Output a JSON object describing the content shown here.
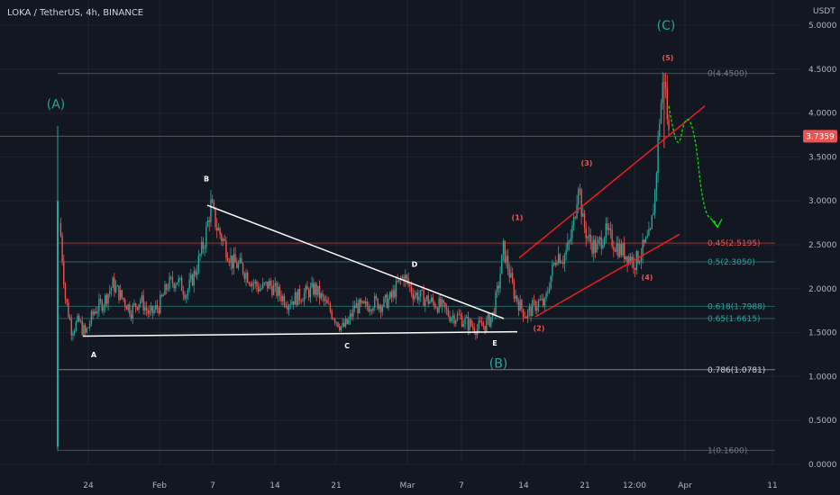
{
  "header": {
    "title": "LOKA / TetherUS, 4h, BINANCE",
    "currency": "USDT"
  },
  "colors": {
    "background": "#131722",
    "grid": "#1f2330",
    "up": "#26a69a",
    "down": "#ef5350",
    "wave_green": "#26a69a",
    "wave_red": "#ef5350",
    "triangle_line": "#ffffff",
    "channel_line": "#e91e1e",
    "projection": "#00e600"
  },
  "chart_data": {
    "type": "candlestick",
    "x_ticks": [
      "24",
      "Feb",
      "7",
      "14",
      "21",
      "Mar",
      "7",
      "14",
      "21",
      "12:00",
      "Apr",
      "11"
    ],
    "y_ticks": [
      "5.0000",
      "4.5000",
      "4.0000",
      "3.5000",
      "3.0000",
      "2.5000",
      "2.0000",
      "1.5000",
      "1.0000",
      "0.5000",
      "0.0000"
    ],
    "ylim": [
      0,
      5.2
    ],
    "current_price": "3.7359",
    "fib_levels": [
      {
        "label": "0(4.4500)",
        "value": 4.45,
        "color": "#787b86"
      },
      {
        "label": "0.45(2.5195)",
        "value": 2.5195,
        "color": "#ef5350"
      },
      {
        "label": "0.5(2.3050)",
        "value": 2.305,
        "color": "#26a69a"
      },
      {
        "label": "0.618(1.7988)",
        "value": 1.7988,
        "color": "#26a69a"
      },
      {
        "label": "0.65(1.6615)",
        "value": 1.6615,
        "color": "#26a69a"
      },
      {
        "label": "0.786(1.0781)",
        "value": 1.0781,
        "color": "#d1d4dc"
      },
      {
        "label": "1(0.1600)",
        "value": 0.16,
        "color": "#787b86"
      }
    ],
    "wave_labels": [
      {
        "text": "(A)",
        "kind": "big-green"
      },
      {
        "text": "A",
        "kind": "white"
      },
      {
        "text": "B",
        "kind": "white"
      },
      {
        "text": "C",
        "kind": "white"
      },
      {
        "text": "D",
        "kind": "white"
      },
      {
        "text": "E",
        "kind": "white"
      },
      {
        "text": "(B)",
        "kind": "big-green"
      },
      {
        "text": "(1)",
        "kind": "red"
      },
      {
        "text": "(2)",
        "kind": "red"
      },
      {
        "text": "(3)",
        "kind": "red"
      },
      {
        "text": "(4)",
        "kind": "red"
      },
      {
        "text": "(5)",
        "kind": "red"
      },
      {
        "text": "(C)",
        "kind": "big-green"
      }
    ],
    "price_path": [
      [
        0,
        2.9
      ],
      [
        2,
        2.6
      ],
      [
        5,
        1.9
      ],
      [
        9,
        1.55
      ],
      [
        14,
        1.62
      ],
      [
        18,
        1.48
      ],
      [
        24,
        1.75
      ],
      [
        30,
        1.85
      ],
      [
        36,
        2.05
      ],
      [
        42,
        1.9
      ],
      [
        48,
        1.75
      ],
      [
        54,
        1.88
      ],
      [
        60,
        1.7
      ],
      [
        66,
        1.8
      ],
      [
        72,
        2.05
      ],
      [
        78,
        2.1
      ],
      [
        84,
        1.95
      ],
      [
        90,
        2.2
      ],
      [
        96,
        2.55
      ],
      [
        100,
        2.95
      ],
      [
        104,
        2.7
      ],
      [
        108,
        2.55
      ],
      [
        114,
        2.3
      ],
      [
        120,
        2.25
      ],
      [
        126,
        2.1
      ],
      [
        132,
        2.0
      ],
      [
        138,
        2.05
      ],
      [
        144,
        1.95
      ],
      [
        150,
        1.85
      ],
      [
        156,
        1.9
      ],
      [
        162,
        1.95
      ],
      [
        168,
        2.0
      ],
      [
        174,
        1.85
      ],
      [
        180,
        1.7
      ],
      [
        186,
        1.55
      ],
      [
        190,
        1.62
      ],
      [
        194,
        1.8
      ],
      [
        200,
        1.78
      ],
      [
        206,
        1.85
      ],
      [
        212,
        1.82
      ],
      [
        218,
        1.9
      ],
      [
        222,
        2.05
      ],
      [
        226,
        2.15
      ],
      [
        232,
        1.95
      ],
      [
        238,
        1.9
      ],
      [
        244,
        1.85
      ],
      [
        250,
        1.8
      ],
      [
        256,
        1.7
      ],
      [
        262,
        1.68
      ],
      [
        268,
        1.6
      ],
      [
        274,
        1.55
      ],
      [
        280,
        1.6
      ],
      [
        284,
        1.7
      ],
      [
        288,
        2.05
      ],
      [
        291,
        2.45
      ],
      [
        294,
        2.25
      ],
      [
        298,
        1.95
      ],
      [
        302,
        1.8
      ],
      [
        306,
        1.7
      ],
      [
        310,
        1.78
      ],
      [
        314,
        1.85
      ],
      [
        318,
        1.82
      ],
      [
        322,
        2.15
      ],
      [
        326,
        2.4
      ],
      [
        330,
        2.35
      ],
      [
        334,
        2.5
      ],
      [
        337,
        2.75
      ],
      [
        340,
        3.25
      ],
      [
        343,
        2.75
      ],
      [
        347,
        2.55
      ],
      [
        352,
        2.45
      ],
      [
        357,
        2.65
      ],
      [
        362,
        2.55
      ],
      [
        367,
        2.45
      ],
      [
        372,
        2.38
      ],
      [
        377,
        2.3
      ],
      [
        382,
        2.45
      ],
      [
        387,
        2.6
      ],
      [
        390,
        3.1
      ],
      [
        393,
        3.95
      ],
      [
        396,
        4.45
      ],
      [
        399,
        3.74
      ]
    ]
  }
}
